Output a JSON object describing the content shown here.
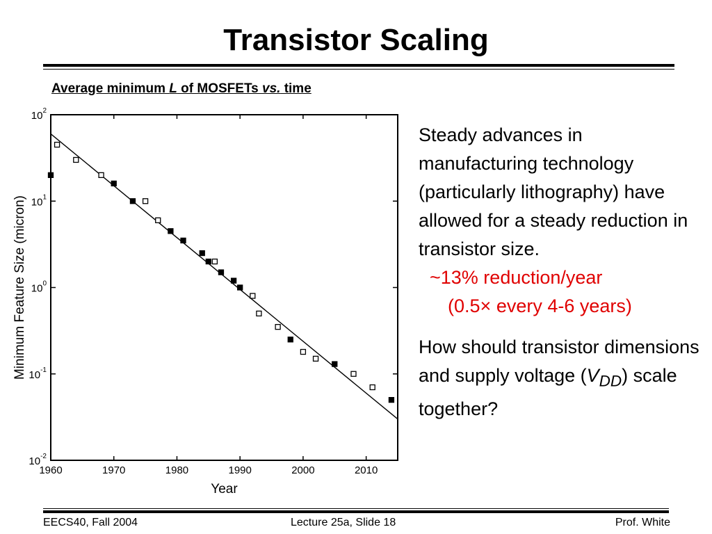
{
  "slide": {
    "title": "Transistor Scaling",
    "chart_caption_prefix": "Average minimum ",
    "chart_caption_L": "L",
    "chart_caption_mid": " of MOSFETs ",
    "chart_caption_vs": "vs.",
    "chart_caption_suffix": " time",
    "para1": "Steady advances in manufacturing technology (particularly lithography) have allowed for a steady reduction in transistor size.",
    "bullet1": "~13% reduction/year",
    "bullet2_a": "(0.5",
    "bullet2_times": "×",
    "bullet2_b": " every 4-6 years)",
    "para2_a": "How should transistor dimensions and supply voltage (",
    "para2_V": "V",
    "para2_DD": "DD",
    "para2_b": ") scale together?",
    "footer_left": "EECS40, Fall 2004",
    "footer_center": "Lecture 25a, Slide 18",
    "footer_right": "Prof. White",
    "accent_color": "#e00000"
  },
  "chart_data": {
    "type": "scatter",
    "title": "Average minimum L of MOSFETs vs. time",
    "xlabel": "Year",
    "ylabel": "Minimum Feature Size (micron)",
    "xlim": [
      1960,
      2015
    ],
    "ylim_log10": [
      -2,
      2
    ],
    "xticks": [
      1960,
      1970,
      1980,
      1990,
      2000,
      2010
    ],
    "xtick_labels": [
      "1960",
      "1970",
      "1980",
      "1990",
      "2000",
      "2010"
    ],
    "ytick_exponents": [
      2,
      1,
      0,
      -1,
      -2
    ],
    "ytick_base": "10",
    "series": [
      {
        "name": "open squares",
        "marker": "open-square",
        "points": [
          [
            1961,
            45
          ],
          [
            1964,
            30
          ],
          [
            1968,
            20
          ],
          [
            1975,
            10
          ],
          [
            1977,
            6
          ],
          [
            1986,
            2
          ],
          [
            1992,
            0.8
          ],
          [
            1993,
            0.5
          ],
          [
            1996,
            0.35
          ],
          [
            2000,
            0.18
          ],
          [
            2002,
            0.15
          ],
          [
            2008,
            0.1
          ],
          [
            2011,
            0.07
          ]
        ]
      },
      {
        "name": "filled squares",
        "marker": "filled-square",
        "points": [
          [
            1960,
            20
          ],
          [
            1970,
            16
          ],
          [
            1973,
            10
          ],
          [
            1979,
            4.5
          ],
          [
            1981,
            3.5
          ],
          [
            1984,
            2.5
          ],
          [
            1985,
            2
          ],
          [
            1987,
            1.5
          ],
          [
            1989,
            1.2
          ],
          [
            1990,
            1
          ],
          [
            1998,
            0.25
          ],
          [
            2005,
            0.13
          ],
          [
            2014,
            0.05
          ]
        ]
      }
    ],
    "trendline": {
      "x": [
        1960,
        2015
      ],
      "y": [
        60,
        0.03
      ]
    }
  }
}
